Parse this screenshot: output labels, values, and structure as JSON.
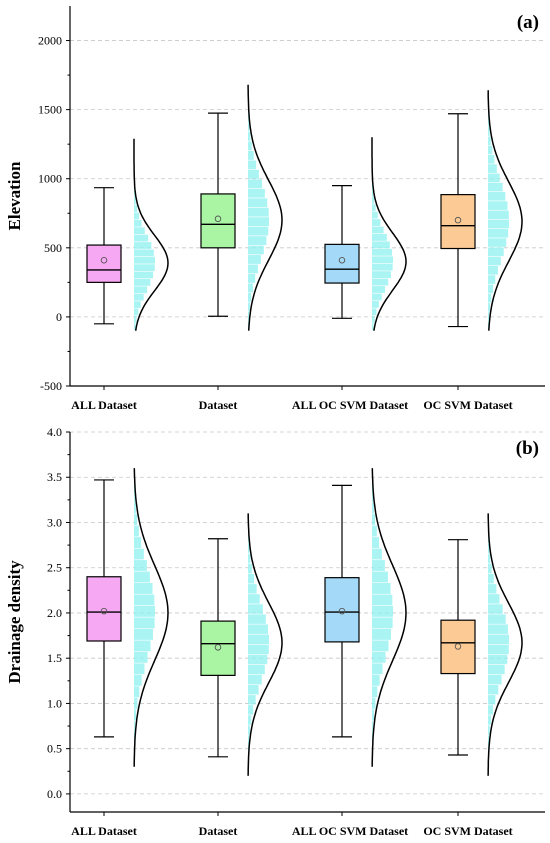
{
  "chart_data": [
    {
      "type": "box",
      "panel_label": "(a)",
      "ylabel": "Elevation",
      "ylim": [
        -500,
        2250
      ],
      "yticks": [
        -500,
        0,
        500,
        1000,
        1500,
        2000
      ],
      "ytick_labels": [
        "-500",
        "0",
        "500",
        "1000",
        "1500",
        "2000"
      ],
      "grid": true,
      "categories": [
        "ALL Dataset",
        "Dataset",
        "ALL OC SVM Dataset",
        "OC SVM Dataset"
      ],
      "colors": [
        "#f7a8f2",
        "#a9f5a4",
        "#a4daf7",
        "#fccb95"
      ],
      "series": [
        {
          "whisker_low": -50,
          "q1": 250,
          "median": 340,
          "q3": 520,
          "whisker_high": 935,
          "mean": 410,
          "curve_min": -100,
          "curve_max": 1290,
          "curve_peak": 390
        },
        {
          "whisker_low": 5,
          "q1": 500,
          "median": 670,
          "q3": 890,
          "whisker_high": 1475,
          "mean": 710,
          "curve_min": -100,
          "curve_max": 1680,
          "curve_peak": 700
        },
        {
          "whisker_low": -10,
          "q1": 245,
          "median": 345,
          "q3": 525,
          "whisker_high": 950,
          "mean": 410,
          "curve_min": -100,
          "curve_max": 1300,
          "curve_peak": 400
        },
        {
          "whisker_low": -70,
          "q1": 495,
          "median": 660,
          "q3": 885,
          "whisker_high": 1470,
          "mean": 700,
          "curve_min": -100,
          "curve_max": 1640,
          "curve_peak": 690
        }
      ]
    },
    {
      "type": "box",
      "panel_label": "(b)",
      "ylabel": "Drainage density",
      "ylim": [
        -0.2,
        4.0
      ],
      "yticks": [
        0.0,
        0.5,
        1.0,
        1.5,
        2.0,
        2.5,
        3.0,
        3.5,
        4.0
      ],
      "ytick_labels": [
        "0.0",
        "0.5",
        "1.0",
        "1.5",
        "2.0",
        "2.5",
        "3.0",
        "3.5",
        "4.0"
      ],
      "grid": true,
      "categories": [
        "ALL Dataset",
        "Dataset",
        "ALL OC SVM Dataset",
        "OC SVM Dataset"
      ],
      "colors": [
        "#f7a8f2",
        "#a9f5a4",
        "#a4daf7",
        "#fccb95"
      ],
      "series": [
        {
          "whisker_low": 0.63,
          "q1": 1.69,
          "median": 2.01,
          "q3": 2.4,
          "whisker_high": 3.47,
          "mean": 2.02,
          "curve_min": 0.3,
          "curve_max": 3.6,
          "curve_peak": 2.0
        },
        {
          "whisker_low": 0.41,
          "q1": 1.31,
          "median": 1.66,
          "q3": 1.91,
          "whisker_high": 2.82,
          "mean": 1.62,
          "curve_min": 0.2,
          "curve_max": 3.1,
          "curve_peak": 1.67
        },
        {
          "whisker_low": 0.63,
          "q1": 1.68,
          "median": 2.01,
          "q3": 2.39,
          "whisker_high": 3.41,
          "mean": 2.02,
          "curve_min": 0.3,
          "curve_max": 3.6,
          "curve_peak": 2.0
        },
        {
          "whisker_low": 0.43,
          "q1": 1.33,
          "median": 1.67,
          "q3": 1.92,
          "whisker_high": 2.81,
          "mean": 1.63,
          "curve_min": 0.2,
          "curve_max": 3.1,
          "curve_peak": 1.67
        }
      ]
    }
  ]
}
